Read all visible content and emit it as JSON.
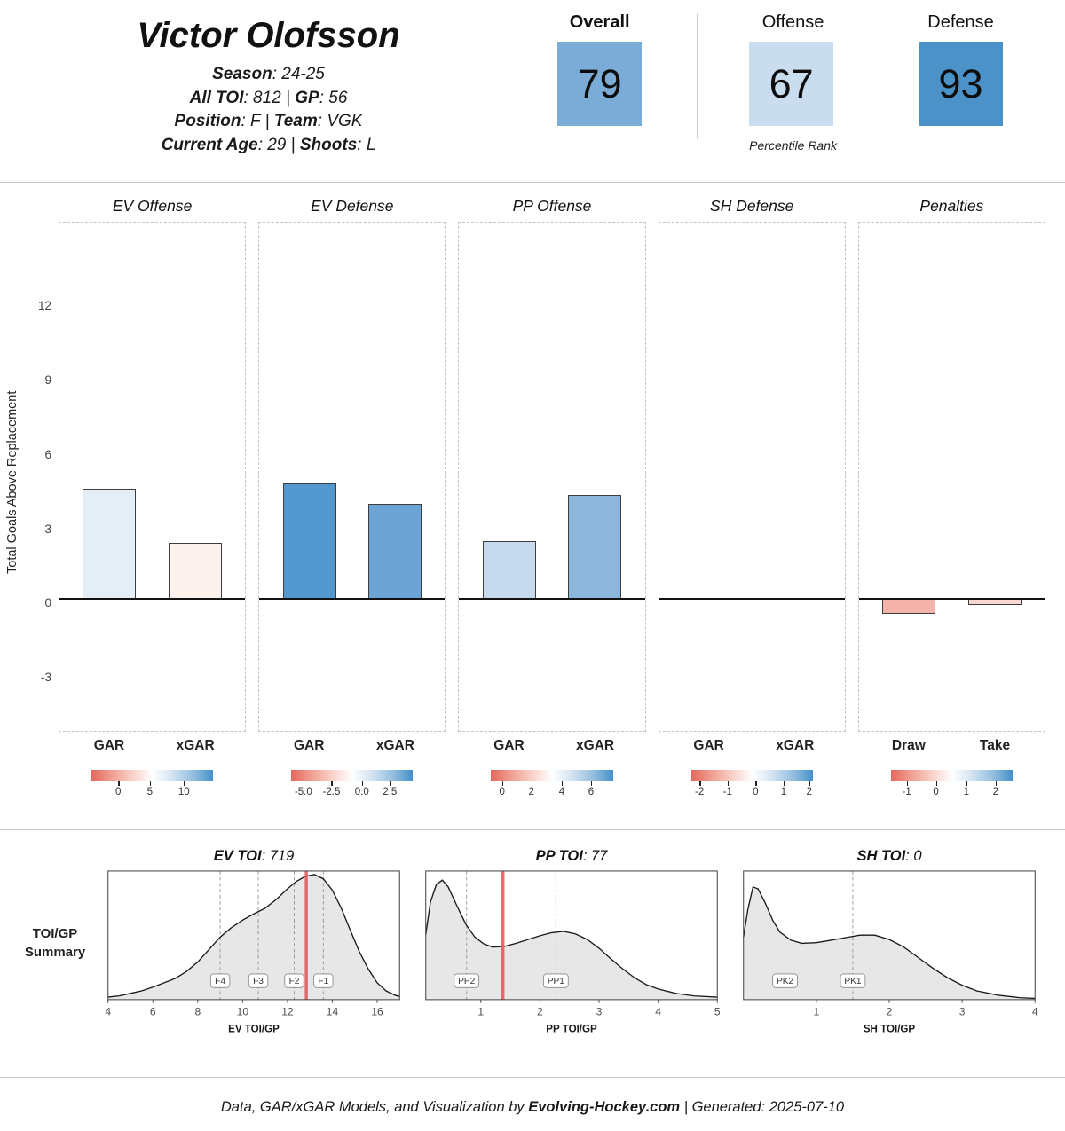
{
  "header": {
    "player_name": "Victor Olofsson",
    "info_lines": [
      {
        "segments": [
          {
            "text": "Season",
            "bold": true
          },
          {
            "text": ": 24-25",
            "bold": false
          }
        ]
      },
      {
        "segments": [
          {
            "text": "All TOI",
            "bold": true
          },
          {
            "text": ": 812 | ",
            "bold": false
          },
          {
            "text": "GP",
            "bold": true
          },
          {
            "text": ": 56",
            "bold": false
          }
        ]
      },
      {
        "segments": [
          {
            "text": "Position",
            "bold": true
          },
          {
            "text": ": F | ",
            "bold": false
          },
          {
            "text": "Team",
            "bold": true
          },
          {
            "text": ": VGK",
            "bold": false
          }
        ]
      },
      {
        "segments": [
          {
            "text": "Current Age",
            "bold": true
          },
          {
            "text": ": 29 | ",
            "bold": false
          },
          {
            "text": "Shoots",
            "bold": true
          },
          {
            "text": ": L",
            "bold": false
          }
        ]
      }
    ],
    "percentiles": [
      {
        "label": "Overall",
        "value": "79",
        "color": "#7bacd7",
        "label_bold": true
      },
      {
        "label": "Offense",
        "value": "67",
        "color": "#c9ddee",
        "label_bold": false
      },
      {
        "label": "Defense",
        "value": "93",
        "color": "#4b92c9",
        "label_bold": false
      }
    ],
    "percentile_caption": "Percentile Rank"
  },
  "chart_data": [
    {
      "type": "bar",
      "title": "Total Goals Above Replacement by game state",
      "ylabel": "Total Goals Above Replacement",
      "yticks": [
        -3,
        0,
        3,
        6,
        9,
        12
      ],
      "ylim": [
        -5.4,
        15.2
      ],
      "panels": [
        {
          "title": "EV Offense",
          "categories": [
            "GAR",
            "xGAR"
          ],
          "values": [
            4.45,
            2.25
          ],
          "bar_colors": [
            "#e4eef7",
            "#fdf2ee"
          ],
          "legend_ticks": [
            {
              "label": "0",
              "pos": 0.22
            },
            {
              "label": "5",
              "pos": 0.48
            },
            {
              "label": "10",
              "pos": 0.76
            }
          ]
        },
        {
          "title": "EV Defense",
          "categories": [
            "GAR",
            "xGAR"
          ],
          "values": [
            4.65,
            3.85
          ],
          "bar_colors": [
            "#5398ce",
            "#6ba4d5"
          ],
          "legend_ticks": [
            {
              "label": "-5.0",
              "pos": 0.1
            },
            {
              "label": "-2.5",
              "pos": 0.33
            },
            {
              "label": "0.0",
              "pos": 0.58
            },
            {
              "label": "2.5",
              "pos": 0.81
            }
          ]
        },
        {
          "title": "PP Offense",
          "categories": [
            "GAR",
            "xGAR"
          ],
          "values": [
            2.35,
            4.2
          ],
          "bar_colors": [
            "#c7d9ec",
            "#8cb6dc"
          ],
          "legend_ticks": [
            {
              "label": "0",
              "pos": 0.09
            },
            {
              "label": "2",
              "pos": 0.33
            },
            {
              "label": "4",
              "pos": 0.58
            },
            {
              "label": "6",
              "pos": 0.82
            }
          ]
        },
        {
          "title": "SH Defense",
          "categories": [
            "GAR",
            "xGAR"
          ],
          "values": [
            0,
            0
          ],
          "bar_colors": [
            "#ffffff",
            "#ffffff"
          ],
          "legend_ticks": [
            {
              "label": "-2",
              "pos": 0.07
            },
            {
              "label": "-1",
              "pos": 0.3
            },
            {
              "label": "0",
              "pos": 0.53
            },
            {
              "label": "1",
              "pos": 0.76
            },
            {
              "label": "2",
              "pos": 0.97
            }
          ]
        },
        {
          "title": "Penalties",
          "categories": [
            "Draw",
            "Take"
          ],
          "values": [
            -0.6,
            -0.25
          ],
          "bar_colors": [
            "#f4b3ab",
            "#f9d8d2"
          ],
          "legend_ticks": [
            {
              "label": "-1",
              "pos": 0.13
            },
            {
              "label": "0",
              "pos": 0.37
            },
            {
              "label": "1",
              "pos": 0.62
            },
            {
              "label": "2",
              "pos": 0.86
            }
          ]
        }
      ]
    },
    {
      "type": "area",
      "title": "TOI/GP Summary",
      "summary_label": [
        "TOI/GP",
        "Summary"
      ],
      "plots": [
        {
          "title_label": "EV TOI",
          "title_value": ": 719",
          "xlabel": "EV TOI/GP",
          "xlim": [
            4,
            17
          ],
          "xticks": [
            4,
            6,
            8,
            10,
            12,
            14,
            16
          ],
          "player_line": 12.84,
          "markers": [
            {
              "label": "F4",
              "x": 9.0
            },
            {
              "label": "F3",
              "x": 10.7
            },
            {
              "label": "F2",
              "x": 12.3
            },
            {
              "label": "F1",
              "x": 13.6
            }
          ],
          "curve": [
            [
              4,
              0.02
            ],
            [
              4.5,
              0.03
            ],
            [
              5,
              0.05
            ],
            [
              5.5,
              0.07
            ],
            [
              6,
              0.1
            ],
            [
              6.5,
              0.135
            ],
            [
              7,
              0.17
            ],
            [
              7.5,
              0.225
            ],
            [
              8,
              0.3
            ],
            [
              8.5,
              0.4
            ],
            [
              9,
              0.5
            ],
            [
              9.5,
              0.575
            ],
            [
              10,
              0.635
            ],
            [
              10.5,
              0.685
            ],
            [
              11,
              0.73
            ],
            [
              11.5,
              0.8
            ],
            [
              12,
              0.885
            ],
            [
              12.4,
              0.945
            ],
            [
              12.8,
              0.985
            ],
            [
              13.2,
              1.0
            ],
            [
              13.6,
              0.965
            ],
            [
              14,
              0.875
            ],
            [
              14.4,
              0.73
            ],
            [
              14.8,
              0.555
            ],
            [
              15.2,
              0.385
            ],
            [
              15.6,
              0.245
            ],
            [
              16,
              0.135
            ],
            [
              16.4,
              0.07
            ],
            [
              16.8,
              0.035
            ],
            [
              17,
              0.025
            ]
          ]
        },
        {
          "title_label": "PP TOI",
          "title_value": ": 77",
          "xlabel": "PP TOI/GP",
          "xlim": [
            0.07,
            5
          ],
          "xticks": [
            1,
            2,
            3,
            4,
            5
          ],
          "player_line": 1.375,
          "markers": [
            {
              "label": "PP2",
              "x": 0.76
            },
            {
              "label": "PP1",
              "x": 2.27
            }
          ],
          "curve": [
            [
              0.07,
              0.52
            ],
            [
              0.15,
              0.78
            ],
            [
              0.25,
              0.92
            ],
            [
              0.35,
              0.955
            ],
            [
              0.45,
              0.9
            ],
            [
              0.6,
              0.745
            ],
            [
              0.75,
              0.6
            ],
            [
              0.9,
              0.5
            ],
            [
              1.05,
              0.445
            ],
            [
              1.2,
              0.42
            ],
            [
              1.4,
              0.425
            ],
            [
              1.6,
              0.45
            ],
            [
              1.8,
              0.48
            ],
            [
              2.0,
              0.51
            ],
            [
              2.2,
              0.535
            ],
            [
              2.4,
              0.545
            ],
            [
              2.6,
              0.525
            ],
            [
              2.8,
              0.48
            ],
            [
              3.0,
              0.41
            ],
            [
              3.2,
              0.325
            ],
            [
              3.4,
              0.245
            ],
            [
              3.6,
              0.175
            ],
            [
              3.8,
              0.12
            ],
            [
              4.0,
              0.085
            ],
            [
              4.3,
              0.05
            ],
            [
              4.6,
              0.03
            ],
            [
              5.0,
              0.02
            ]
          ]
        },
        {
          "title_label": "SH TOI",
          "title_value": ": 0",
          "xlabel": "SH TOI/GP",
          "xlim": [
            0,
            4
          ],
          "xticks": [
            1,
            2,
            3,
            4
          ],
          "player_line": null,
          "markers": [
            {
              "label": "PK2",
              "x": 0.57
            },
            {
              "label": "PK1",
              "x": 1.5
            }
          ],
          "curve": [
            [
              0,
              0.5
            ],
            [
              0.06,
              0.72
            ],
            [
              0.13,
              0.9
            ],
            [
              0.2,
              0.885
            ],
            [
              0.3,
              0.77
            ],
            [
              0.4,
              0.635
            ],
            [
              0.5,
              0.54
            ],
            [
              0.65,
              0.475
            ],
            [
              0.8,
              0.45
            ],
            [
              1.0,
              0.455
            ],
            [
              1.2,
              0.475
            ],
            [
              1.4,
              0.495
            ],
            [
              1.6,
              0.515
            ],
            [
              1.8,
              0.515
            ],
            [
              2.0,
              0.48
            ],
            [
              2.2,
              0.42
            ],
            [
              2.4,
              0.335
            ],
            [
              2.6,
              0.25
            ],
            [
              2.8,
              0.175
            ],
            [
              3.0,
              0.115
            ],
            [
              3.2,
              0.07
            ],
            [
              3.5,
              0.035
            ],
            [
              3.8,
              0.015
            ],
            [
              4.0,
              0.01
            ]
          ]
        }
      ]
    }
  ],
  "footer": {
    "segments": [
      {
        "text": "Data, GAR/xGAR Models, and Visualization by ",
        "bold": false
      },
      {
        "text": "Evolving-Hockey.com",
        "bold": true
      },
      {
        "text": " | Generated: 2025-07-10",
        "bold": false
      }
    ]
  }
}
